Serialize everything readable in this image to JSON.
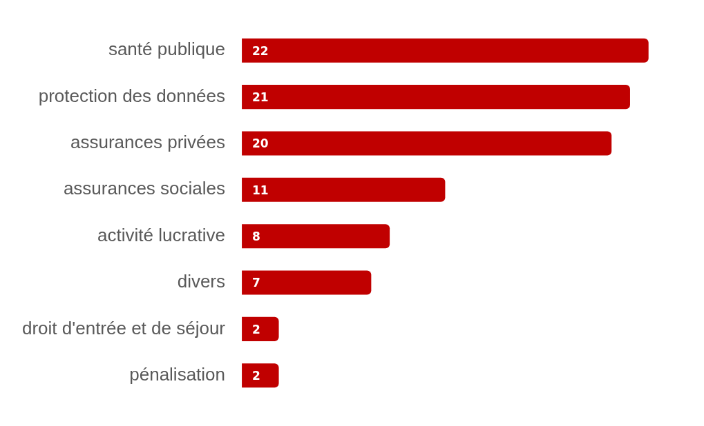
{
  "chart_data": {
    "type": "bar",
    "orientation": "horizontal",
    "categories": [
      "santé publique",
      "protection des données",
      "assurances privées",
      "assurances sociales",
      "activité lucrative",
      "divers",
      "droit d'entrée et de séjour",
      "pénalisation"
    ],
    "values": [
      22,
      21,
      20,
      11,
      8,
      7,
      2,
      2
    ],
    "color": "#c00000",
    "data_labels": true,
    "grid": false,
    "legend": false
  }
}
